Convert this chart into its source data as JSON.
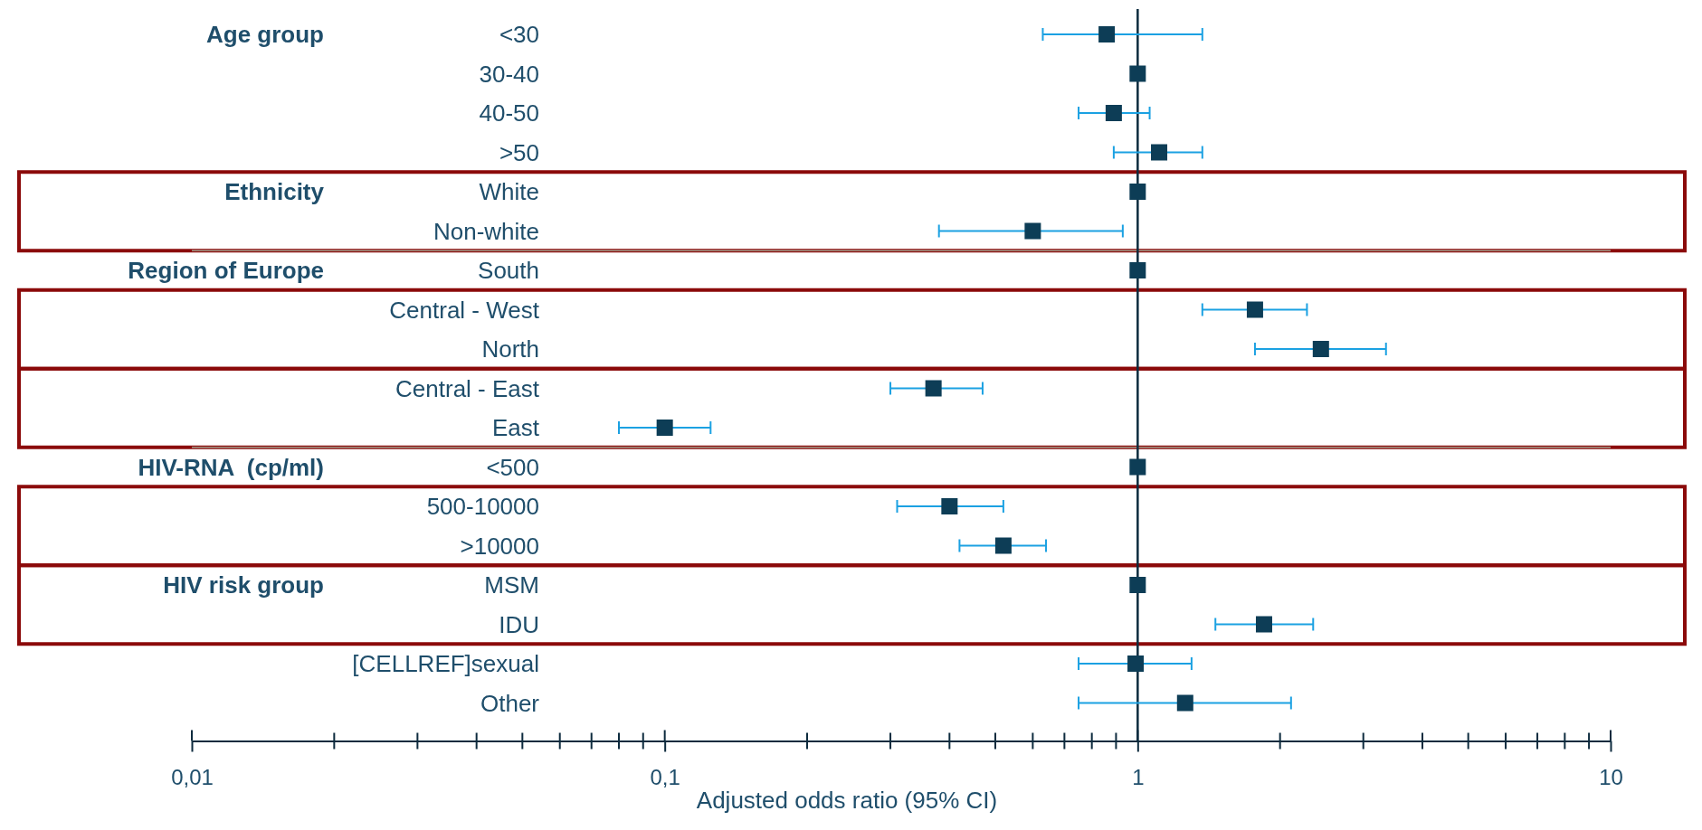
{
  "chart_data": {
    "type": "scatter",
    "xlabel": "Adjusted odds ratio (95% CI)",
    "categories": [
      "<30",
      "30-40",
      "40-50",
      ">50",
      "White",
      "Non-white",
      "South",
      "Central - West",
      "North",
      "Central - East",
      "East",
      "<500",
      "500-10000",
      ">10000",
      "MSM",
      "IDU",
      "[CELLREF]sexual",
      "Other"
    ],
    "series": [
      {
        "color": "#0d3d56",
        "values": [
          0.86,
          1,
          0.89,
          1.11,
          1,
          0.6,
          1,
          1.77,
          2.44,
          0.37,
          0.1,
          1,
          0.4,
          0.52,
          1,
          1.85,
          0.99,
          1.26
        ],
        "errors": [
          [
            0.63,
            1.37
          ],
          null,
          [
            0.75,
            1.06
          ],
          [
            0.89,
            1.37
          ],
          null,
          [
            0.38,
            0.93
          ],
          null,
          [
            1.37,
            2.28
          ],
          [
            1.77,
            3.35
          ],
          [
            0.3,
            0.47
          ],
          [
            0.08,
            0.125
          ],
          null,
          [
            0.31,
            0.52
          ],
          [
            0.42,
            0.64
          ],
          null,
          [
            1.46,
            2.35
          ],
          [
            0.75,
            1.3
          ],
          [
            0.75,
            2.11
          ]
        ]
      }
    ],
    "orientation": "horizontal",
    "log": "x",
    "marker": "square",
    "xlim": [
      0.01,
      10
    ],
    "xticks": [
      {
        "value": 0.01,
        "label": "0,01"
      },
      {
        "value": 0.1,
        "label": "0,1"
      },
      1,
      10
    ],
    "ref_lines": [
      {
        "axis": "x",
        "value": 1,
        "color": "#0d2b3e"
      }
    ],
    "annotations": [
      "Age group",
      "Ethnicity",
      "Region of Europe",
      "HIV-RNA  (cp/ml)",
      "HIV risk group"
    ]
  }
}
